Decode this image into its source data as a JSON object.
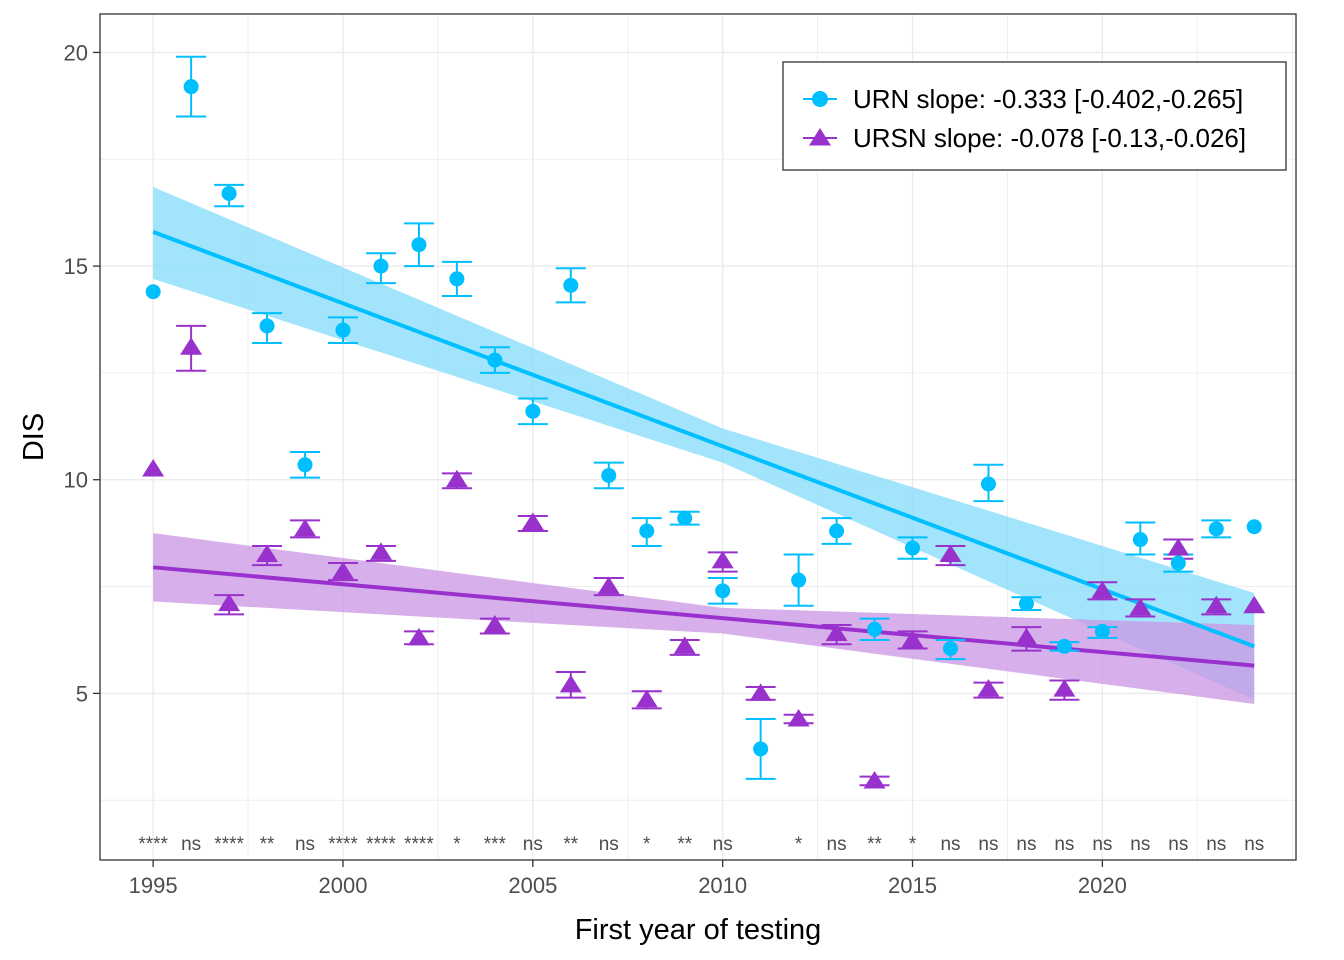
{
  "chart_data": {
    "type": "scatter",
    "title": "",
    "xlabel": "First year of testing",
    "ylabel": "DIS",
    "xlim": [
      1993.6,
      2025.1
    ],
    "ylim": [
      1.1,
      20.9
    ],
    "x_ticks": [
      1995,
      2000,
      2005,
      2010,
      2015,
      2020
    ],
    "y_ticks": [
      5,
      10,
      15,
      20
    ],
    "grid": true,
    "legend_position": "top-right",
    "colors": {
      "URN": "#00bfff",
      "URSN": "#9932cc",
      "URN_band": "#87dcfa",
      "URSN_band": "#cc99e6",
      "sig_text": "#4d4d4d"
    },
    "series": [
      {
        "name": "URN slope: -0.333 [-0.402,-0.265]",
        "marker": "circle",
        "points": [
          {
            "x": 1995,
            "y": 14.4,
            "lo": 14.4,
            "hi": 14.4
          },
          {
            "x": 1996,
            "y": 19.2,
            "lo": 18.5,
            "hi": 19.9
          },
          {
            "x": 1997,
            "y": 16.7,
            "lo": 16.4,
            "hi": 16.9
          },
          {
            "x": 1998,
            "y": 13.6,
            "lo": 13.2,
            "hi": 13.9
          },
          {
            "x": 1999,
            "y": 10.35,
            "lo": 10.05,
            "hi": 10.65
          },
          {
            "x": 2000,
            "y": 13.5,
            "lo": 13.2,
            "hi": 13.8
          },
          {
            "x": 2001,
            "y": 15.0,
            "lo": 14.6,
            "hi": 15.3
          },
          {
            "x": 2002,
            "y": 15.5,
            "lo": 15.0,
            "hi": 16.0
          },
          {
            "x": 2003,
            "y": 14.7,
            "lo": 14.3,
            "hi": 15.1
          },
          {
            "x": 2004,
            "y": 12.8,
            "lo": 12.5,
            "hi": 13.1
          },
          {
            "x": 2005,
            "y": 11.6,
            "lo": 11.3,
            "hi": 11.9
          },
          {
            "x": 2006,
            "y": 14.55,
            "lo": 14.15,
            "hi": 14.95
          },
          {
            "x": 2007,
            "y": 10.1,
            "lo": 9.8,
            "hi": 10.4
          },
          {
            "x": 2008,
            "y": 8.8,
            "lo": 8.45,
            "hi": 9.1
          },
          {
            "x": 2009,
            "y": 9.1,
            "lo": 8.95,
            "hi": 9.25
          },
          {
            "x": 2010,
            "y": 7.4,
            "lo": 7.1,
            "hi": 7.7
          },
          {
            "x": 2011,
            "y": 3.7,
            "lo": 3.0,
            "hi": 4.4
          },
          {
            "x": 2012,
            "y": 7.65,
            "lo": 7.05,
            "hi": 8.25
          },
          {
            "x": 2013,
            "y": 8.8,
            "lo": 8.5,
            "hi": 9.1
          },
          {
            "x": 2014,
            "y": 6.5,
            "lo": 6.25,
            "hi": 6.75
          },
          {
            "x": 2015,
            "y": 8.4,
            "lo": 8.15,
            "hi": 8.65
          },
          {
            "x": 2016,
            "y": 6.05,
            "lo": 5.8,
            "hi": 6.25
          },
          {
            "x": 2017,
            "y": 9.9,
            "lo": 9.5,
            "hi": 10.35
          },
          {
            "x": 2018,
            "y": 7.1,
            "lo": 6.95,
            "hi": 7.25
          },
          {
            "x": 2019,
            "y": 6.1,
            "lo": 6.0,
            "hi": 6.2
          },
          {
            "x": 2020,
            "y": 6.45,
            "lo": 6.3,
            "hi": 6.55
          },
          {
            "x": 2021,
            "y": 8.6,
            "lo": 8.25,
            "hi": 9.0
          },
          {
            "x": 2022,
            "y": 8.05,
            "lo": 7.85,
            "hi": 8.25
          },
          {
            "x": 2023,
            "y": 8.85,
            "lo": 8.65,
            "hi": 9.05
          },
          {
            "x": 2024,
            "y": 8.9,
            "lo": 8.9,
            "hi": 8.9
          }
        ],
        "trend": {
          "x": [
            1995,
            2024
          ],
          "y": [
            15.8,
            6.1
          ]
        },
        "band": {
          "x": [
            1995,
            2010,
            2024
          ],
          "lower": [
            14.7,
            10.4,
            4.85
          ],
          "upper": [
            16.85,
            11.2,
            7.35
          ]
        }
      },
      {
        "name": "URSN slope: -0.078 [-0.13,-0.026]",
        "marker": "triangle",
        "points": [
          {
            "x": 1995,
            "y": 10.25,
            "lo": 10.25,
            "hi": 10.25
          },
          {
            "x": 1996,
            "y": 13.1,
            "lo": 12.55,
            "hi": 13.6
          },
          {
            "x": 1997,
            "y": 7.1,
            "lo": 6.85,
            "hi": 7.3
          },
          {
            "x": 1998,
            "y": 8.25,
            "lo": 8.0,
            "hi": 8.45
          },
          {
            "x": 1999,
            "y": 8.85,
            "lo": 8.65,
            "hi": 9.05
          },
          {
            "x": 2000,
            "y": 7.85,
            "lo": 7.65,
            "hi": 8.05
          },
          {
            "x": 2001,
            "y": 8.3,
            "lo": 8.1,
            "hi": 8.45
          },
          {
            "x": 2002,
            "y": 6.3,
            "lo": 6.15,
            "hi": 6.45
          },
          {
            "x": 2003,
            "y": 10.0,
            "lo": 9.8,
            "hi": 10.15
          },
          {
            "x": 2004,
            "y": 6.6,
            "lo": 6.4,
            "hi": 6.75
          },
          {
            "x": 2005,
            "y": 9.0,
            "lo": 8.8,
            "hi": 9.15
          },
          {
            "x": 2006,
            "y": 5.2,
            "lo": 4.9,
            "hi": 5.5
          },
          {
            "x": 2007,
            "y": 7.5,
            "lo": 7.3,
            "hi": 7.7
          },
          {
            "x": 2008,
            "y": 4.85,
            "lo": 4.65,
            "hi": 5.05
          },
          {
            "x": 2009,
            "y": 6.1,
            "lo": 5.9,
            "hi": 6.25
          },
          {
            "x": 2010,
            "y": 8.1,
            "lo": 7.85,
            "hi": 8.3
          },
          {
            "x": 2011,
            "y": 5.0,
            "lo": 4.85,
            "hi": 5.15
          },
          {
            "x": 2012,
            "y": 4.4,
            "lo": 4.3,
            "hi": 4.5
          },
          {
            "x": 2013,
            "y": 6.4,
            "lo": 6.15,
            "hi": 6.6
          },
          {
            "x": 2014,
            "y": 2.95,
            "lo": 2.85,
            "hi": 3.05
          },
          {
            "x": 2015,
            "y": 6.25,
            "lo": 6.05,
            "hi": 6.45
          },
          {
            "x": 2016,
            "y": 8.25,
            "lo": 8.0,
            "hi": 8.45
          },
          {
            "x": 2017,
            "y": 5.1,
            "lo": 4.9,
            "hi": 5.25
          },
          {
            "x": 2018,
            "y": 6.3,
            "lo": 6.0,
            "hi": 6.55
          },
          {
            "x": 2019,
            "y": 5.1,
            "lo": 4.85,
            "hi": 5.3
          },
          {
            "x": 2020,
            "y": 7.4,
            "lo": 7.2,
            "hi": 7.6
          },
          {
            "x": 2021,
            "y": 7.0,
            "lo": 6.8,
            "hi": 7.2
          },
          {
            "x": 2022,
            "y": 8.4,
            "lo": 8.15,
            "hi": 8.6
          },
          {
            "x": 2023,
            "y": 7.05,
            "lo": 6.85,
            "hi": 7.2
          },
          {
            "x": 2024,
            "y": 7.05,
            "lo": 7.05,
            "hi": 7.05
          }
        ],
        "trend": {
          "x": [
            1995,
            2024
          ],
          "y": [
            7.95,
            5.65
          ]
        },
        "band": {
          "x": [
            1995,
            2010,
            2024
          ],
          "lower": [
            7.15,
            6.4,
            4.75
          ],
          "upper": [
            8.75,
            7.0,
            6.6
          ]
        }
      }
    ],
    "significance": [
      {
        "x": 1995,
        "label": "****"
      },
      {
        "x": 1996,
        "label": "ns"
      },
      {
        "x": 1997,
        "label": "****"
      },
      {
        "x": 1998,
        "label": "**"
      },
      {
        "x": 1999,
        "label": "ns"
      },
      {
        "x": 2000,
        "label": "****"
      },
      {
        "x": 2001,
        "label": "****"
      },
      {
        "x": 2002,
        "label": "****"
      },
      {
        "x": 2003,
        "label": "*"
      },
      {
        "x": 2004,
        "label": "***"
      },
      {
        "x": 2005,
        "label": "ns"
      },
      {
        "x": 2006,
        "label": "**"
      },
      {
        "x": 2007,
        "label": "ns"
      },
      {
        "x": 2008,
        "label": "*"
      },
      {
        "x": 2009,
        "label": "**"
      },
      {
        "x": 2010,
        "label": "ns"
      },
      {
        "x": 2012,
        "label": "*"
      },
      {
        "x": 2013,
        "label": "ns"
      },
      {
        "x": 2014,
        "label": "**"
      },
      {
        "x": 2015,
        "label": "*"
      },
      {
        "x": 2016,
        "label": "ns"
      },
      {
        "x": 2017,
        "label": "ns"
      },
      {
        "x": 2018,
        "label": "ns"
      },
      {
        "x": 2019,
        "label": "ns"
      },
      {
        "x": 2020,
        "label": "ns"
      },
      {
        "x": 2021,
        "label": "ns"
      },
      {
        "x": 2022,
        "label": "ns"
      },
      {
        "x": 2023,
        "label": "ns"
      },
      {
        "x": 2024,
        "label": "ns"
      }
    ],
    "significance_y": 1.5
  }
}
